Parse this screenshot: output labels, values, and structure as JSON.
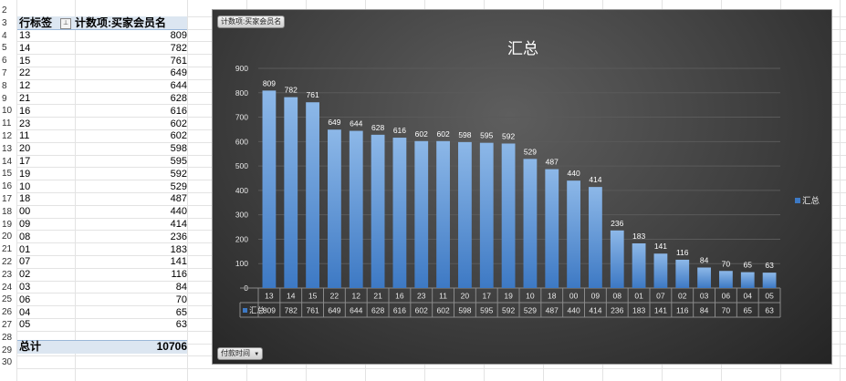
{
  "row_numbers": [
    "2",
    "3",
    "4",
    "5",
    "6",
    "7",
    "8",
    "9",
    "10",
    "11",
    "12",
    "13",
    "14",
    "15",
    "16",
    "17",
    "18",
    "19",
    "20",
    "21",
    "22",
    "23",
    "24",
    "25",
    "26",
    "27",
    "28",
    "29",
    "30"
  ],
  "pivot": {
    "header_label": "行标签",
    "value_header": "计数项:买家会员名",
    "filter_icon": "⊥",
    "rows": [
      {
        "label": "13",
        "value": "809"
      },
      {
        "label": "14",
        "value": "782"
      },
      {
        "label": "15",
        "value": "761"
      },
      {
        "label": "22",
        "value": "649"
      },
      {
        "label": "12",
        "value": "644"
      },
      {
        "label": "21",
        "value": "628"
      },
      {
        "label": "16",
        "value": "616"
      },
      {
        "label": "23",
        "value": "602"
      },
      {
        "label": "11",
        "value": "602"
      },
      {
        "label": "20",
        "value": "598"
      },
      {
        "label": "17",
        "value": "595"
      },
      {
        "label": "19",
        "value": "592"
      },
      {
        "label": "10",
        "value": "529"
      },
      {
        "label": "18",
        "value": "487"
      },
      {
        "label": "00",
        "value": "440"
      },
      {
        "label": "09",
        "value": "414"
      },
      {
        "label": "08",
        "value": "236"
      },
      {
        "label": "01",
        "value": "183"
      },
      {
        "label": "07",
        "value": "141"
      },
      {
        "label": "02",
        "value": "116"
      },
      {
        "label": "03",
        "value": "84"
      },
      {
        "label": "06",
        "value": "70"
      },
      {
        "label": "04",
        "value": "65"
      },
      {
        "label": "05",
        "value": "63"
      }
    ],
    "total_label": "总计",
    "total_value": "10706"
  },
  "chart_field_buttons": {
    "value_field": "计数项:买家会员名",
    "axis_field": "付款时间",
    "axis_field_arrow": "▼"
  },
  "chart_data": {
    "type": "bar",
    "title": "汇总",
    "categories": [
      "13",
      "14",
      "15",
      "22",
      "12",
      "21",
      "16",
      "23",
      "11",
      "20",
      "17",
      "19",
      "10",
      "18",
      "00",
      "09",
      "08",
      "01",
      "07",
      "02",
      "03",
      "06",
      "04",
      "05"
    ],
    "series": [
      {
        "name": "汇总",
        "values": [
          809,
          782,
          761,
          649,
          644,
          628,
          616,
          602,
          602,
          598,
          595,
          592,
          529,
          487,
          440,
          414,
          236,
          183,
          141,
          116,
          84,
          70,
          65,
          63
        ]
      }
    ],
    "ylim": [
      0,
      900
    ],
    "yticks": [
      0,
      100,
      200,
      300,
      400,
      500,
      600,
      700,
      800,
      900
    ],
    "grid": true,
    "legend": "right",
    "data_table": true,
    "colors": {
      "bar_top": "#8db8e8",
      "bar_bottom": "#3d79c4",
      "text": "#ffffff",
      "axis_text": "#e8e8e8",
      "grid": "#5a5a5a",
      "table_line": "#8a8a8a"
    }
  }
}
